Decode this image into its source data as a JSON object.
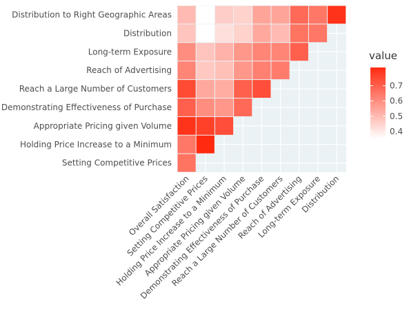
{
  "chart_data": {
    "type": "heatmap",
    "title": "",
    "xlabel": "",
    "ylabel": "",
    "x_categories": [
      "Overall Satisfaction",
      "Setting Competitive Prices",
      "Holding Price Increase to a Minimum",
      "Appropriate Pricing given Volume",
      "Demonstrating Effectiveness of Purchase",
      "Reach a Large Number of Customers",
      "Reach of Advertising",
      "Long-term Exposure",
      "Distribution"
    ],
    "y_categories": [
      "Distribution to Right Geographic Areas",
      "Distribution",
      "Long-term Exposure",
      "Reach of Advertising",
      "Reach a Large Number of Customers",
      "Demonstrating Effectiveness of Purchase",
      "Appropriate Pricing given Volume",
      "Holding Price Increase to a Minimum",
      "Setting Competitive Prices"
    ],
    "values": [
      [
        0.5,
        0.35,
        0.46,
        0.45,
        0.55,
        0.55,
        0.68,
        0.65,
        0.8
      ],
      [
        0.48,
        0.35,
        0.42,
        0.45,
        0.54,
        0.5,
        0.66,
        0.65,
        null
      ],
      [
        0.6,
        0.48,
        0.52,
        0.58,
        0.62,
        0.62,
        0.7,
        null,
        null
      ],
      [
        0.62,
        0.47,
        0.49,
        0.58,
        0.63,
        0.64,
        null,
        null,
        null
      ],
      [
        0.75,
        0.54,
        0.53,
        0.7,
        0.74,
        null,
        null,
        null,
        null
      ],
      [
        0.7,
        0.6,
        0.58,
        0.68,
        null,
        null,
        null,
        null,
        null
      ],
      [
        0.8,
        0.77,
        0.74,
        null,
        null,
        null,
        null,
        null,
        null
      ],
      [
        0.65,
        0.82,
        null,
        null,
        null,
        null,
        null,
        null,
        null
      ],
      [
        0.66,
        null,
        null,
        null,
        null,
        null,
        null,
        null,
        null
      ]
    ],
    "legend": {
      "title": "value",
      "ticks": [
        0.4,
        0.5,
        0.6,
        0.7
      ],
      "min": 0.35,
      "max": 0.82,
      "low_color": "#ffffff",
      "high_color": "#ff2a10"
    },
    "panel_background": "#eaf2f5",
    "grid": true
  }
}
